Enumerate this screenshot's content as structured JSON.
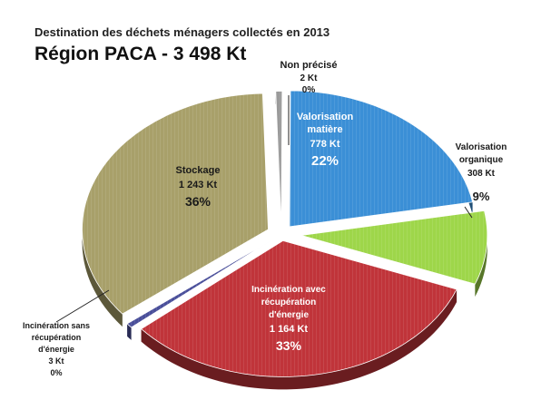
{
  "chart_data": {
    "type": "pie",
    "title": "Destination des déchets ménagers collectés en 2013",
    "subtitle": "Région PACA - 3 498 Kt",
    "slices": [
      {
        "name": "Non précisé",
        "value_kt": "2 Kt",
        "percent_label": "0%",
        "value": 2,
        "percent": 0,
        "color": "#9a9a9a"
      },
      {
        "name": "Valorisation matière",
        "value_kt": "778 Kt",
        "percent_label": "22%",
        "value": 778,
        "percent": 22,
        "color": "#3b8fd6"
      },
      {
        "name": "Valorisation organique",
        "value_kt": "308 Kt",
        "percent_label": "9%",
        "value": 308,
        "percent": 9,
        "color": "#9ed64a"
      },
      {
        "name": "Incinération avec récupération d'énergie",
        "value_kt": "1 164 Kt",
        "percent_label": "33%",
        "value": 1164,
        "percent": 33,
        "color": "#c0343a"
      },
      {
        "name": "Incinération sans récupération d'énergie",
        "value_kt": "3 Kt",
        "percent_label": "0%",
        "value": 3,
        "percent": 0,
        "color": "#4a4f9a"
      },
      {
        "name": "Stockage",
        "value_kt": "1 243 Kt",
        "percent_label": "36%",
        "value": 1243,
        "percent": 36,
        "color": "#a8a06a"
      }
    ]
  }
}
